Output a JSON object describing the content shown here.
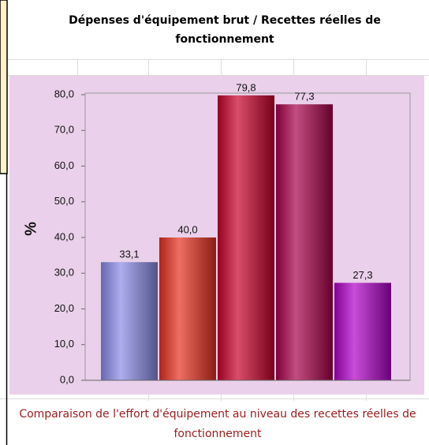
{
  "chart_data": {
    "type": "bar",
    "title": "Dépenses d'équipement brut / Recettes réelles de fonctionnement",
    "caption": "Comparaison de l'effort d'équipement au niveau des recettes réelles de fonctionnement",
    "y_label": "%",
    "categories": [
      null,
      null,
      null,
      null,
      null
    ],
    "values": [
      33.1,
      40.0,
      79.8,
      77.3,
      27.3
    ],
    "value_labels": [
      "33,1",
      "40,0",
      "79,8",
      "77,3",
      "27,3"
    ],
    "colors": [
      "#8a8ae8",
      "#e83020",
      "#c8002a",
      "#a8004a",
      "#b000c8"
    ],
    "ylim": [
      0,
      80
    ],
    "yticks": [
      {
        "value": 0,
        "label": "0,0"
      },
      {
        "value": 10,
        "label": "10,0"
      },
      {
        "value": 20,
        "label": "20,0"
      },
      {
        "value": 30,
        "label": "30,0"
      },
      {
        "value": 40,
        "label": "40,0"
      },
      {
        "value": 50,
        "label": "50,0"
      },
      {
        "value": 60,
        "label": "60,0"
      },
      {
        "value": 70,
        "label": "70,0"
      },
      {
        "value": 80,
        "label": "80,0"
      }
    ]
  }
}
